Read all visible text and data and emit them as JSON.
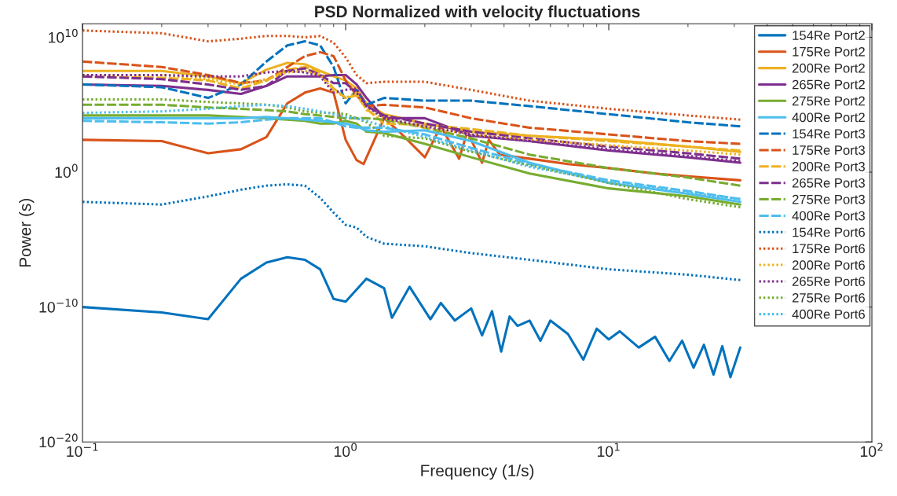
{
  "chart_data": {
    "type": "line",
    "title": "PSD Normalized with velocity fluctuations",
    "xlabel": "Frequency (1/s)",
    "ylabel": "Power (s)",
    "log": "xy",
    "grid": false,
    "legend": "top right",
    "xlim": [
      0.1,
      100
    ],
    "xticks": [
      {
        "value": 0.1,
        "label": "10$^{−1}$"
      },
      {
        "value": 1,
        "label": "10$^{0}$"
      },
      {
        "value": 10,
        "label": "10$^{1}$"
      },
      {
        "value": 100,
        "label": "10$^{2}$"
      }
    ],
    "ylim": [
      1e-20,
      100000000000.0
    ],
    "yticks": [
      {
        "value": 1e-20,
        "label": "10$^{−20}$"
      },
      {
        "value": 1e-10,
        "label": "10$^{−10}$"
      },
      {
        "value": 1,
        "label": "10$^{0}$"
      },
      {
        "value": 10000000000.0,
        "label": "10$^{10}$"
      }
    ],
    "x": [
      0.1,
      0.2,
      0.3,
      0.4,
      0.5,
      0.6,
      0.7,
      0.8,
      0.9,
      1,
      1.1,
      1.2,
      1.4,
      2,
      3,
      5,
      10,
      20,
      31.6
    ],
    "series": [
      {
        "name": "154Re Port2",
        "color": "#0072bd",
        "line_style": "solid",
        "x": [
          0.1,
          0.2,
          0.3,
          0.4,
          0.5,
          0.6,
          0.7,
          0.8,
          0.9,
          1.0,
          1.2,
          1.4,
          1.5,
          1.75,
          2.1,
          2.3,
          2.6,
          3.0,
          3.3,
          3.6,
          3.9,
          4.2,
          4.5,
          5,
          5.5,
          6,
          7,
          8,
          9,
          10,
          11,
          13,
          15,
          17,
          19,
          21,
          23,
          25,
          27,
          29,
          31.6
        ],
        "values": [
          1e-10,
          4e-11,
          1.26e-11,
          1.26e-08,
          2e-07,
          5e-07,
          3.2e-07,
          6.3e-08,
          4e-10,
          2.5e-10,
          1.26e-08,
          2.5e-09,
          1.6e-11,
          3.2e-09,
          1.26e-11,
          2e-10,
          1e-11,
          7.9e-11,
          7.9e-13,
          5e-11,
          5e-14,
          2e-11,
          4e-12,
          1e-11,
          3.2e-13,
          1e-11,
          1e-12,
          1.26e-14,
          2.5e-12,
          4e-13,
          1.6e-12,
          1e-13,
          6.3e-13,
          1e-14,
          3.2e-13,
          3.2e-15,
          1.6e-13,
          1e-15,
          1.26e-13,
          6.3e-16,
          1e-13
        ]
      },
      {
        "name": "175Re Port2",
        "color": "#d95319",
        "line_style": "solid",
        "x": [
          0.1,
          0.2,
          0.3,
          0.4,
          0.5,
          0.6,
          0.7,
          0.8,
          0.9,
          1.0,
          1.1,
          1.17,
          1.3,
          1.4,
          1.6,
          2.0,
          2.3,
          2.7,
          2.9,
          3.3,
          3.5,
          3.85,
          5,
          7,
          10,
          15,
          20,
          31.6
        ],
        "values": [
          250,
          200,
          25,
          50,
          400,
          126000.0,
          790000.0,
          1600000.0,
          790000.0,
          250,
          7.9,
          4,
          400,
          10000.0,
          1000.0,
          12.6,
          2500.0,
          10,
          1000.0,
          5,
          250,
          20,
          10,
          4,
          2,
          0.79,
          0.5,
          0.25
        ]
      },
      {
        "name": "200Re Port2",
        "color": "#edb120",
        "line_style": "solid",
        "values": [
          32000000.0,
          32000000.0,
          12600000.0,
          4000000.0,
          40000000.0,
          126000000.0,
          100000000.0,
          32000000.0,
          12600000.0,
          6300000.0,
          1600000.0,
          126000.0,
          20000.0,
          4000.0,
          1000.0,
          500,
          250,
          79,
          32
        ]
      },
      {
        "name": "265Re Port2",
        "color": "#7e2f8e",
        "line_style": "solid",
        "values": [
          3200000.0,
          2500000.0,
          1260000.0,
          630000.0,
          2500000.0,
          12600000.0,
          12600000.0,
          12600000.0,
          16000000.0,
          16000000.0,
          3200000.0,
          320000.0,
          10000.0,
          10000.0,
          500,
          200,
          40,
          12.6,
          5
        ]
      },
      {
        "name": "275Re Port2",
        "color": "#77ac30",
        "line_style": "solid",
        "values": [
          16000.0,
          16000.0,
          16000.0,
          12600.0,
          10000.0,
          7900.0,
          6300.0,
          4000.0,
          4000.0,
          6300.0,
          4000.0,
          1000.0,
          790,
          126,
          12.6,
          0.79,
          0.063,
          0.016,
          0.004
        ]
      },
      {
        "name": "400Re Port2",
        "color": "#4dbeee",
        "line_style": "solid",
        "values": [
          10000.0,
          10000.0,
          10000.0,
          10000.0,
          12600.0,
          10000.0,
          7900.0,
          6300.0,
          5000.0,
          4000.0,
          2500.0,
          1260.0,
          1000.0,
          1260.0,
          200,
          5,
          0.16,
          0.025,
          0.0063
        ]
      },
      {
        "name": "154Re Port3",
        "color": "#0072bd",
        "line_style": "dashed",
        "values": [
          3200000.0,
          2000000.0,
          320000.0,
          3200000.0,
          160000000.0,
          2500000000.0,
          5000000000.0,
          2500000000.0,
          63000000.0,
          126000.0,
          1260000.0,
          100000.0,
          320000.0,
          200000.0,
          200000.0,
          79000.0,
          20000.0,
          5000.0,
          2500.0
        ]
      },
      {
        "name": "175Re Port3",
        "color": "#d95319",
        "line_style": "dashed",
        "values": [
          160000000.0,
          63000000.0,
          16000000.0,
          4000000.0,
          6300000.0,
          63000000.0,
          400000000.0,
          790000000.0,
          400000000.0,
          6300000.0,
          500000.0,
          79000.0,
          100000.0,
          63000.0,
          10000.0,
          2000.0,
          630,
          200,
          126
        ]
      },
      {
        "name": "200Re Port3",
        "color": "#edb120",
        "line_style": "dashed",
        "values": [
          12600000.0,
          10000000.0,
          6300000.0,
          1600000.0,
          6300000.0,
          40000000.0,
          63000000.0,
          25000000.0,
          1600000.0,
          320000.0,
          500000.0,
          50000.0,
          4000.0,
          3200.0,
          1600.0,
          500,
          200,
          79,
          40
        ]
      },
      {
        "name": "265Re Port3",
        "color": "#7e2f8e",
        "line_style": "dashed",
        "values": [
          12600000.0,
          7900000.0,
          3200000.0,
          1260000.0,
          2500000.0,
          32000000.0,
          50000000.0,
          16000000.0,
          4000000.0,
          4000000.0,
          790000.0,
          79000.0,
          16000.0,
          4000.0,
          1000.0,
          320,
          79,
          25,
          10
        ]
      },
      {
        "name": "275Re Port3",
        "color": "#77ac30",
        "line_style": "dashed",
        "values": [
          100000.0,
          100000.0,
          63000.0,
          50000.0,
          40000.0,
          32000.0,
          20000.0,
          16000.0,
          12600.0,
          10000.0,
          10000.0,
          10000.0,
          7900.0,
          2000.0,
          320,
          20,
          2,
          0.4,
          0.1
        ]
      },
      {
        "name": "400Re Port3",
        "color": "#4dbeee",
        "line_style": "dashed",
        "values": [
          6300.0,
          5000.0,
          4000.0,
          5000.0,
          7900.0,
          10000.0,
          10000.0,
          10000.0,
          5000.0,
          2500.0,
          2000.0,
          2000.0,
          2000.0,
          630,
          63,
          4,
          0.25,
          0.04,
          0.01
        ]
      },
      {
        "name": "154Re Port6",
        "color": "#0072bd",
        "line_style": "dotted",
        "values": [
          0.0063,
          0.004,
          0.016,
          0.05,
          0.1,
          0.126,
          0.1,
          0.0126,
          0.001,
          0.000126,
          7.9e-05,
          1.6e-05,
          5e-06,
          3.2e-06,
          1e-06,
          3.2e-07,
          6.3e-08,
          2.5e-08,
          1e-08
        ]
      },
      {
        "name": "175Re Port6",
        "color": "#d95319",
        "line_style": "dotted",
        "values": [
          32000000000.0,
          20000000000.0,
          5000000000.0,
          7900000000.0,
          12600000000.0,
          12600000000.0,
          10000000000.0,
          12600000000.0,
          4000000000.0,
          320000000.0,
          16000000.0,
          4000000.0,
          5000000.0,
          5000000.0,
          1260000.0,
          200000.0,
          50000.0,
          16000.0,
          7900.0
        ]
      },
      {
        "name": "200Re Port6",
        "color": "#edb120",
        "line_style": "dotted",
        "values": [
          16000000.0,
          16000000.0,
          7900000.0,
          3200000.0,
          7900000.0,
          25000000.0,
          32000000.0,
          16000000.0,
          1260000.0,
          320000.0,
          790000.0,
          40000.0,
          10000.0,
          2000.0,
          630,
          250,
          100,
          40,
          20
        ]
      },
      {
        "name": "265Re Port6",
        "color": "#7e2f8e",
        "line_style": "dotted",
        "values": [
          16000000.0,
          16000000.0,
          12600000.0,
          12600000.0,
          25000000.0,
          32000000.0,
          25000000.0,
          12600000.0,
          790000.0,
          1260000.0,
          1600000.0,
          79000.0,
          10000.0,
          2500.0,
          630,
          200,
          50,
          16,
          6.3
        ]
      },
      {
        "name": "275Re Port6",
        "color": "#77ac30",
        "line_style": "dotted",
        "values": [
          250000.0,
          250000.0,
          160000.0,
          126000.0,
          100000.0,
          63000.0,
          32000.0,
          25000.0,
          25000.0,
          20000.0,
          10000.0,
          5000.0,
          500,
          320,
          32,
          3.2,
          0.16,
          0.01,
          0.0025
        ]
      },
      {
        "name": "400Re Port6",
        "color": "#4dbeee",
        "line_style": "dotted",
        "values": [
          25000.0,
          32000.0,
          50000.0,
          79000.0,
          100000.0,
          79000.0,
          50000.0,
          32000.0,
          20000.0,
          12600.0,
          10000.0,
          6300.0,
          2500.0,
          400,
          40,
          2.5,
          0.2,
          0.032,
          0.01
        ]
      }
    ]
  }
}
